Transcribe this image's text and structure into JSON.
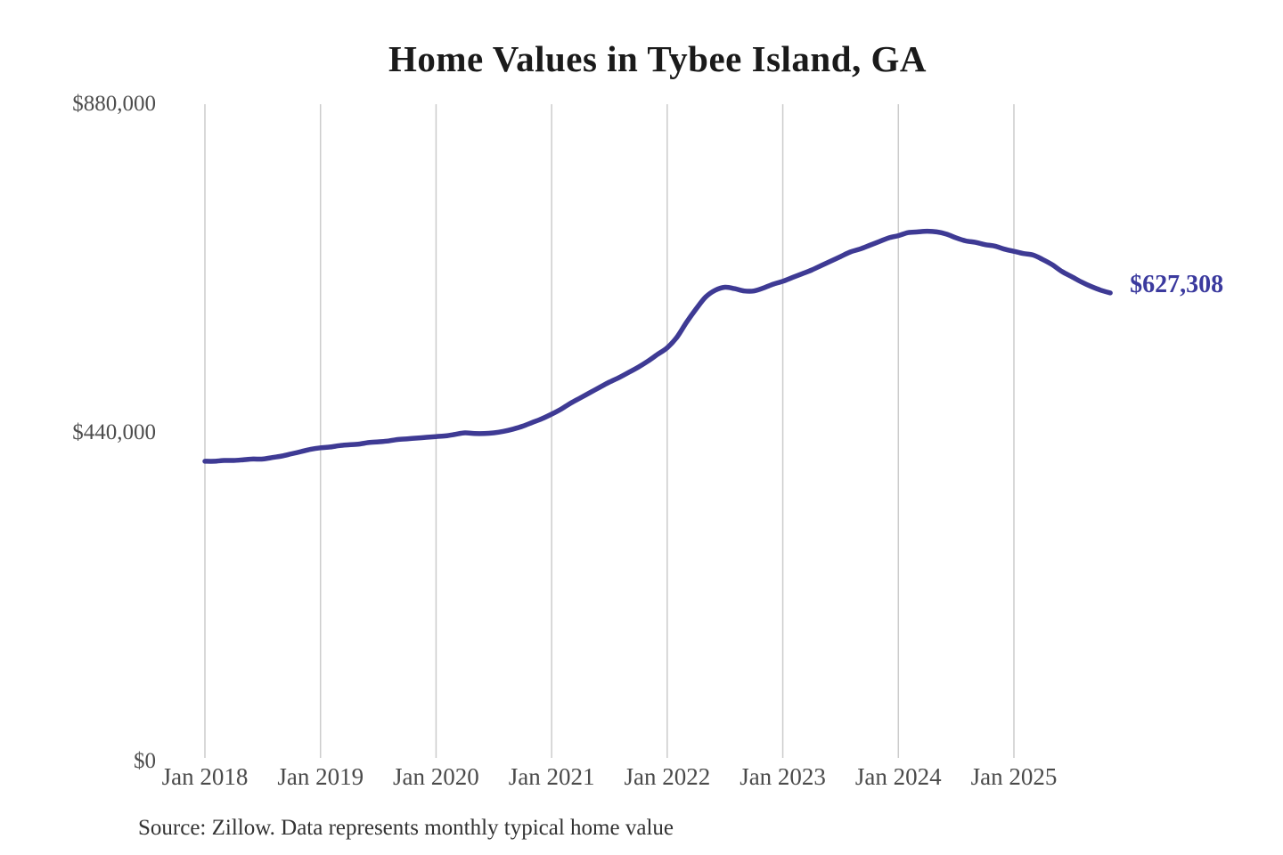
{
  "page": {
    "background": "#ffffff"
  },
  "chart": {
    "colors": {
      "line": "#3e3a94",
      "end_label": "#3b3a9e",
      "gridline": "#cccccc",
      "axis_text": "#4d4d4d",
      "title_text": "#1a1a1a",
      "source_text": "#333333"
    }
  },
  "chart_data": {
    "type": "line",
    "title": "Home Values in Tybee Island, GA",
    "source": "Source: Zillow. Data represents monthly typical home value",
    "legend": "none",
    "grid": "vertical-only",
    "xlabel": "",
    "ylabel": "",
    "ylim": [
      0,
      880000
    ],
    "y_ticks": [
      {
        "label": "$0",
        "value": 0
      },
      {
        "label": "$440,000",
        "value": 440000
      },
      {
        "label": "$880,000",
        "value": 880000
      }
    ],
    "x_tick_labels": [
      "Jan 2018",
      "Jan 2019",
      "Jan 2020",
      "Jan 2021",
      "Jan 2022",
      "Jan 2023",
      "Jan 2024",
      "Jan 2025"
    ],
    "series": [
      {
        "name": "Monthly typical home value",
        "start_month": "2018-01",
        "end_month": "2025-11",
        "frequency": "monthly",
        "final_value": 627308,
        "final_label": "$627,308",
        "values": [
          402000,
          402000,
          403000,
          403000,
          404000,
          405000,
          405000,
          407000,
          409000,
          412000,
          415000,
          418000,
          420000,
          421000,
          423000,
          424000,
          425000,
          427000,
          428000,
          429000,
          431000,
          432000,
          433000,
          434000,
          435000,
          436000,
          438000,
          440000,
          439000,
          439000,
          440000,
          442000,
          445000,
          449000,
          454000,
          459000,
          465000,
          472000,
          480000,
          487000,
          494000,
          501000,
          508000,
          514000,
          521000,
          528000,
          536000,
          545000,
          554000,
          568000,
          588000,
          606000,
          622000,
          631000,
          635000,
          633000,
          630000,
          630000,
          634000,
          639000,
          643000,
          648000,
          653000,
          658000,
          664000,
          670000,
          676000,
          682000,
          686000,
          691000,
          696000,
          701000,
          704000,
          708000,
          709000,
          710000,
          709000,
          706000,
          701000,
          697000,
          695000,
          692000,
          690000,
          686000,
          683000,
          680000,
          678000,
          672000,
          665000,
          656000,
          649000,
          642000,
          636000,
          631000,
          627308
        ]
      }
    ]
  }
}
